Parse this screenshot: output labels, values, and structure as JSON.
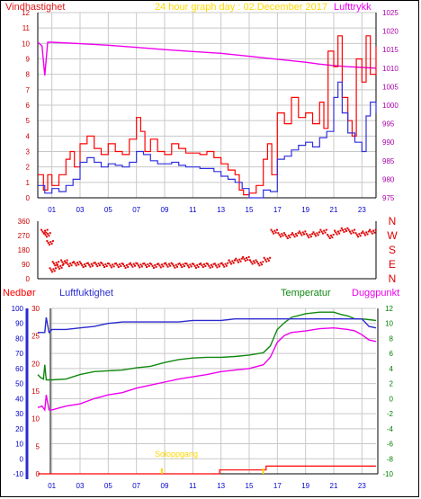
{
  "colors": {
    "wind": "#e01818",
    "gust": "#ff0000",
    "wind_avg": "#3030e0",
    "pressure": "#ee00ee",
    "direction": "#e00000",
    "rain": "#ff0000",
    "humidity": "#2a2ad0",
    "temperature": "#118811",
    "dewpoint": "#ee00ee",
    "sun": "#ffd800",
    "grid": "#c8c8c8",
    "axis": "#000000",
    "tick_red": "#cc0000",
    "tick_blue": "#0000cc",
    "tick_green": "#008000",
    "tick_purple": "#aa00aa"
  },
  "labels": {
    "wind_title": "Vindhastighet",
    "date_title": "24 hour graph day : 02.December 2017",
    "pressure_title": "Lufttrykk",
    "rain_title": "Nedbør",
    "humidity_title": "Luftfuktighet",
    "temp_title": "Temperatur",
    "dew_title": "Duggpunkt",
    "sun_label": "Soloppgang"
  },
  "chart_data": [
    {
      "type": "line",
      "title": "24 hour graph day : 02.December 2017",
      "ylabel": "Vindhastighet",
      "y2label": "Lufttrykk",
      "ylim": [
        0,
        12
      ],
      "y2lim": [
        975,
        1025
      ],
      "yticks": [
        "0",
        "1",
        "2",
        "3",
        "4",
        "5",
        "6",
        "7",
        "8",
        "9",
        "10",
        "11",
        "12"
      ],
      "y2ticks": [
        "975",
        "980",
        "985",
        "990",
        "995",
        "1000",
        "1005",
        "1010",
        "1015",
        "1020",
        "1025"
      ],
      "xticks": [
        "01",
        "03",
        "05",
        "07",
        "09",
        "11",
        "13",
        "15",
        "17",
        "19",
        "21",
        "23"
      ],
      "grid": true,
      "series": [
        {
          "name": "Vindhastighet",
          "x": [
            0,
            0.4,
            0.7,
            1,
            1.5,
            2,
            2.3,
            2.6,
            3,
            3.5,
            4,
            4.5,
            5,
            5.5,
            6,
            6.5,
            7,
            7.3,
            7.6,
            8,
            8.5,
            9,
            9.5,
            10,
            10.5,
            11,
            11.5,
            12,
            12.5,
            13,
            13.5,
            14,
            14.3,
            14.6,
            15,
            15.5,
            16,
            16.3,
            16.6,
            17,
            17.5,
            18,
            18.5,
            19,
            19.5,
            20,
            20.3,
            20.6,
            21,
            21.3,
            21.6,
            22,
            22.3,
            22.6,
            23,
            23.3,
            23.6,
            24
          ],
          "values": [
            1.5,
            0.5,
            1.5,
            0.8,
            1.5,
            2.5,
            3,
            2,
            3.5,
            4,
            3.2,
            2.8,
            3.5,
            3,
            2.8,
            3.8,
            5.2,
            4.3,
            3,
            3.8,
            3,
            2.8,
            3.5,
            3.2,
            2.9,
            2.9,
            2.8,
            3,
            2.6,
            2.2,
            1.8,
            1.5,
            0.5,
            0.2,
            0.3,
            0.8,
            2.5,
            3.5,
            1.5,
            5.5,
            4.8,
            6.5,
            5.2,
            5.5,
            4.8,
            6.2,
            4.5,
            9.5,
            8.5,
            10.5,
            6.5,
            5,
            4,
            9,
            7.5,
            10.5,
            8,
            9.8
          ]
        },
        {
          "name": "Middelvind",
          "x": [
            0,
            0.5,
            1,
            1.5,
            2,
            2.5,
            3,
            3.5,
            4,
            4.5,
            5,
            5.5,
            6,
            6.5,
            7,
            7.5,
            8,
            8.5,
            9,
            9.5,
            10,
            10.5,
            11,
            11.5,
            12,
            12.5,
            13,
            13.5,
            14,
            14.5,
            15,
            15.5,
            16,
            16.5,
            17,
            17.5,
            18,
            18.5,
            19,
            19.5,
            20,
            20.5,
            21,
            21.3,
            21.6,
            22,
            22.5,
            23,
            23.3,
            23.6,
            24
          ],
          "values": [
            0.8,
            0.3,
            0.6,
            0.4,
            0.8,
            1.2,
            2.3,
            2.6,
            2.3,
            2,
            2.2,
            2.1,
            2,
            2.3,
            3,
            2.8,
            2.4,
            2.2,
            2.2,
            2.3,
            2.1,
            2,
            2,
            1.9,
            1.9,
            1.7,
            1.4,
            1.2,
            1,
            0.6,
            0,
            0,
            0.5,
            0.4,
            2.5,
            2.7,
            3.1,
            3.4,
            3.6,
            3.3,
            3.9,
            4.3,
            6.5,
            7.5,
            5.5,
            4.2,
            3.6,
            3,
            5.3,
            6.2,
            5.5
          ]
        },
        {
          "name": "Lufttrykk",
          "x": [
            0,
            0.3,
            0.5,
            0.7,
            1,
            3,
            5,
            7,
            9,
            11,
            13,
            15,
            17,
            19,
            20,
            21,
            22,
            23,
            24
          ],
          "values": [
            1017,
            1016,
            1008,
            1017,
            1017,
            1016.6,
            1016.2,
            1015.6,
            1015,
            1014.5,
            1014,
            1013.2,
            1012.4,
            1011.6,
            1011.1,
            1010.7,
            1010.4,
            1010.2,
            1010
          ]
        }
      ]
    },
    {
      "type": "scatter",
      "ylabel": "Vindretning",
      "ylim": [
        0,
        360
      ],
      "yticks": [
        "0",
        "90",
        "180",
        "270",
        "360"
      ],
      "y2ticks": [
        "N",
        "W",
        "S",
        "E",
        "N"
      ],
      "xticks": [
        "01",
        "03",
        "05",
        "07",
        "09",
        "11",
        "13",
        "15",
        "17",
        "19",
        "21",
        "23"
      ],
      "series": [
        {
          "name": "Vindretning",
          "x": [
            0.2,
            0.4,
            0.6,
            0.8,
            1,
            1.3,
            1.6,
            2,
            2.5,
            3,
            3.5,
            4,
            4.5,
            5,
            5.5,
            6,
            6.5,
            7,
            7.5,
            8,
            8.5,
            9,
            9.5,
            10,
            10.5,
            11,
            11.5,
            12,
            12.5,
            13,
            13.5,
            14,
            14.5,
            15,
            15.5,
            16,
            16.5,
            17,
            17.5,
            18,
            18.5,
            19,
            19.5,
            20,
            20.5,
            21,
            21.5,
            22,
            22.5,
            23,
            23.5
          ],
          "values": [
            300,
            280,
            230,
            60,
            100,
            80,
            110,
            95,
            100,
            90,
            92,
            95,
            90,
            88,
            90,
            85,
            92,
            88,
            90,
            85,
            88,
            92,
            86,
            90,
            88,
            85,
            90,
            86,
            88,
            92,
            110,
            120,
            130,
            110,
            100,
            125,
            300,
            280,
            270,
            280,
            290,
            275,
            285,
            300,
            270,
            295,
            310,
            300,
            280,
            290,
            300
          ]
        }
      ]
    },
    {
      "type": "line",
      "ylabel": "Nedbør",
      "ylim": [
        0,
        30
      ],
      "yticks": [
        "0",
        "5",
        "10",
        "15",
        "20",
        "25",
        "30"
      ],
      "y2lim": [
        -10,
        12
      ],
      "y2ticks": [
        "-10",
        "-8",
        "-6",
        "-4",
        "-2",
        "0",
        "2",
        "4",
        "6",
        "8",
        "10",
        "12"
      ],
      "humidity_ticks": [
        "-10",
        "0",
        "10",
        "20",
        "30",
        "40",
        "50",
        "60",
        "70",
        "80",
        "90",
        "100"
      ],
      "xticks": [
        "01",
        "03",
        "05",
        "07",
        "09",
        "11",
        "13",
        "15",
        "17",
        "19",
        "21",
        "23"
      ],
      "grid": true,
      "series": [
        {
          "name": "Luftfuktighet",
          "x": [
            0,
            0.3,
            0.5,
            0.6,
            0.8,
            1,
            2,
            3,
            4,
            5,
            6,
            7,
            8,
            9,
            10,
            11,
            12,
            13,
            14,
            15,
            16,
            17,
            18,
            19,
            20,
            21,
            22,
            23,
            23.5,
            24
          ],
          "values": [
            84,
            84,
            84,
            94,
            84,
            86,
            86,
            87,
            88,
            90,
            91,
            91,
            91,
            91,
            91,
            92,
            92,
            92,
            93,
            93,
            93,
            93,
            93,
            93,
            93,
            93,
            93,
            93,
            88,
            87
          ]
        },
        {
          "name": "Temperatur",
          "x": [
            0,
            0.2,
            0.4,
            0.5,
            0.6,
            1,
            2,
            3,
            4,
            5,
            6,
            7,
            8,
            9,
            10,
            11,
            12,
            13,
            14,
            15,
            16,
            16.5,
            17,
            17.5,
            18,
            19,
            20,
            21,
            21.5,
            22,
            22.5,
            23,
            23.5,
            24
          ],
          "values": [
            3.2,
            2.8,
            2.6,
            4.5,
            2.5,
            2.5,
            2.6,
            3.2,
            3.6,
            3.7,
            3.8,
            4.1,
            4.3,
            4.8,
            5.2,
            5.4,
            5.5,
            5.5,
            5.6,
            5.8,
            6.1,
            7,
            9.2,
            10.1,
            10.8,
            11.3,
            11.5,
            11.5,
            11.2,
            11,
            10.6,
            10.6,
            10.5,
            10.4
          ]
        },
        {
          "name": "Duggpunkt",
          "x": [
            0,
            0.3,
            0.5,
            0.6,
            0.8,
            1,
            2,
            3,
            4,
            5,
            6,
            7,
            8,
            9,
            10,
            11,
            12,
            13,
            14,
            15,
            16,
            16.5,
            17,
            17.5,
            18,
            19,
            20,
            21,
            21.5,
            22,
            22.5,
            23,
            23.5,
            24
          ],
          "values": [
            -1.2,
            -1,
            -1.5,
            0.5,
            -1.5,
            -1.5,
            -1,
            -0.7,
            0,
            0.5,
            0.8,
            1.4,
            1.8,
            2.2,
            2.6,
            2.9,
            3.2,
            3.6,
            3.8,
            4,
            4.5,
            5.5,
            7.5,
            8.4,
            8.8,
            9,
            9.3,
            9.4,
            9.3,
            9.2,
            9,
            8.5,
            7.8,
            7.6
          ]
        },
        {
          "name": "Nedbør",
          "x": [
            0,
            12.9,
            12.9,
            16.2,
            16.2,
            24
          ],
          "values": [
            0,
            0,
            0.7,
            0.7,
            1.4,
            1.4
          ]
        }
      ]
    }
  ]
}
